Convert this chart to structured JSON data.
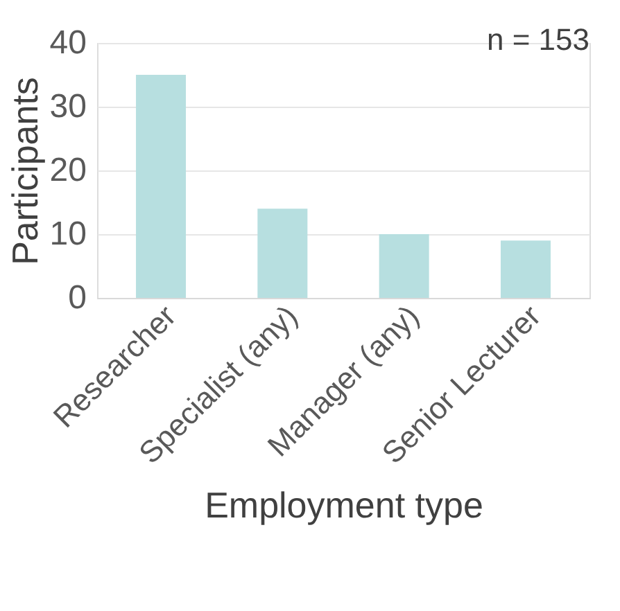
{
  "chart_data": {
    "type": "bar",
    "categories": [
      "Researcher",
      "Specialist (any)",
      "Manager (any)",
      "Senior Lecturer"
    ],
    "values": [
      35,
      14,
      10,
      9
    ],
    "color": "#b7dfe0",
    "xlabel": "Employment type",
    "ylabel": "Participants",
    "ylim": [
      0,
      40
    ],
    "yticks": [
      0,
      10,
      20,
      30,
      40
    ],
    "grid": "y",
    "annotations": [
      "n = 153"
    ]
  }
}
